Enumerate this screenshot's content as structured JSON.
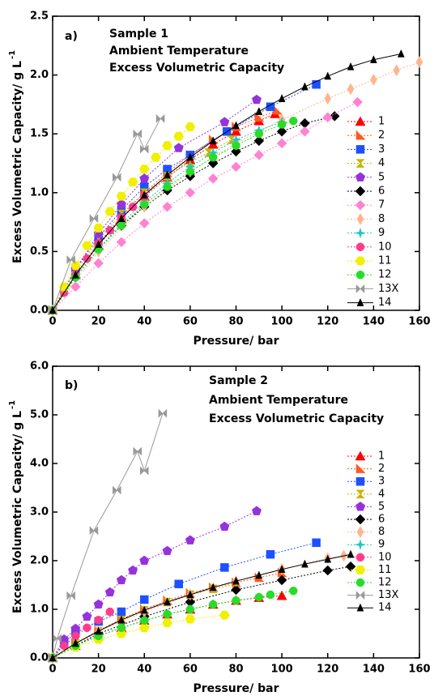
{
  "chart_data": [
    {
      "type": "line",
      "annotations": [
        "a)",
        "Sample 1",
        "Ambient Temperature",
        "Excess Volumetric Capacity"
      ],
      "xlabel": "Pressure/ bar",
      "ylabel": "Excess Volumetric Capacity/ g L",
      "ylabel_superscript": "-1",
      "xlim": [
        0,
        160
      ],
      "xticks": [
        0,
        20,
        40,
        60,
        80,
        100,
        120,
        140,
        160
      ],
      "ylim": [
        0,
        2.5
      ],
      "yticks": [
        {
          "value": 0,
          "label": "0.0"
        },
        {
          "value": 0.5,
          "label": "0.5"
        },
        {
          "value": 1,
          "label": "1.0"
        },
        {
          "value": 1.5,
          "label": "1.5"
        },
        {
          "value": 2,
          "label": "2.0"
        },
        {
          "value": 2.5,
          "label": "2.5"
        }
      ],
      "legend": "right",
      "series": [
        {
          "name": "1",
          "color": "#ff0000",
          "marker": "triangle",
          "x": [
            0,
            10,
            20,
            30,
            40,
            50,
            60,
            70,
            80,
            90,
            97
          ],
          "values": [
            0,
            0.3,
            0.55,
            0.78,
            0.97,
            1.13,
            1.28,
            1.41,
            1.52,
            1.61,
            1.67
          ]
        },
        {
          "name": "2",
          "color": "#ff5a1e",
          "marker": "right-triangle",
          "x": [
            0,
            10,
            20,
            30,
            40,
            50,
            60,
            70,
            80,
            90,
            98
          ],
          "values": [
            0,
            0.3,
            0.56,
            0.8,
            1.0,
            1.17,
            1.32,
            1.45,
            1.56,
            1.64,
            1.7
          ]
        },
        {
          "name": "3",
          "color": "#1e50ff",
          "marker": "square",
          "x": [
            0,
            10,
            20,
            30,
            40,
            50,
            60,
            76,
            95,
            115
          ],
          "values": [
            0,
            0.35,
            0.62,
            0.85,
            1.05,
            1.2,
            1.32,
            1.52,
            1.73,
            1.92
          ]
        },
        {
          "name": "4",
          "color": "#c8b400",
          "marker": "hourglass",
          "x": [
            0,
            10,
            20,
            30,
            40,
            50,
            60,
            68,
            78
          ],
          "values": [
            0,
            0.33,
            0.6,
            0.82,
            1.0,
            1.14,
            1.26,
            1.34,
            1.45
          ]
        },
        {
          "name": "5",
          "color": "#9632dc",
          "marker": "pentagon",
          "x": [
            0,
            10,
            20,
            30,
            40,
            55,
            75,
            89
          ],
          "values": [
            0,
            0.35,
            0.65,
            0.9,
            1.12,
            1.38,
            1.6,
            1.79
          ]
        },
        {
          "name": "6",
          "color": "#000000",
          "marker": "diamond",
          "x": [
            0,
            10,
            20,
            30,
            40,
            50,
            60,
            70,
            80,
            90,
            100,
            110,
            123
          ],
          "values": [
            0,
            0.28,
            0.52,
            0.72,
            0.88,
            1.02,
            1.14,
            1.25,
            1.35,
            1.44,
            1.52,
            1.59,
            1.65
          ]
        },
        {
          "name": "7",
          "color": "#ff82d2",
          "marker": "diamond",
          "x": [
            0,
            10,
            20,
            30,
            40,
            50,
            60,
            70,
            80,
            90,
            100,
            110,
            120,
            133
          ],
          "values": [
            0,
            0.2,
            0.4,
            0.58,
            0.74,
            0.88,
            1.0,
            1.12,
            1.22,
            1.32,
            1.42,
            1.52,
            1.64,
            1.77
          ]
        },
        {
          "name": "8",
          "color": "#ffb48c",
          "marker": "thin-diamond",
          "x": [
            0,
            20,
            40,
            60,
            80,
            100,
            120,
            130,
            140,
            150,
            160
          ],
          "values": [
            0,
            0.5,
            0.88,
            1.18,
            1.42,
            1.62,
            1.8,
            1.88,
            1.96,
            2.04,
            2.11
          ]
        },
        {
          "name": "9",
          "color": "#1ec8c8",
          "marker": "star",
          "x": [
            0,
            10,
            20,
            30,
            40,
            50,
            60,
            70,
            80,
            90,
            100
          ],
          "values": [
            0,
            0.28,
            0.52,
            0.74,
            0.92,
            1.08,
            1.22,
            1.34,
            1.45,
            1.53,
            1.6
          ]
        },
        {
          "name": "10",
          "color": "#ff3c8c",
          "marker": "circle",
          "x": [
            0,
            5,
            10,
            15,
            20,
            25,
            30,
            35,
            40
          ],
          "values": [
            0,
            0.15,
            0.3,
            0.44,
            0.57,
            0.68,
            0.79,
            0.88,
            0.97
          ]
        },
        {
          "name": "11",
          "color": "#f0f000",
          "marker": "hexagon",
          "x": [
            0,
            5,
            10,
            15,
            20,
            25,
            30,
            35,
            40,
            45,
            50,
            55,
            60
          ],
          "values": [
            0,
            0.2,
            0.38,
            0.55,
            0.7,
            0.84,
            0.97,
            1.09,
            1.2,
            1.3,
            1.4,
            1.48,
            1.56
          ]
        },
        {
          "name": "12",
          "color": "#28dc28",
          "marker": "circle",
          "x": [
            0,
            10,
            20,
            30,
            40,
            50,
            60,
            70,
            80,
            90,
            100,
            105
          ],
          "values": [
            0,
            0.28,
            0.52,
            0.72,
            0.9,
            1.05,
            1.18,
            1.3,
            1.4,
            1.5,
            1.58,
            1.61
          ]
        },
        {
          "name": "13X",
          "color": "#999999",
          "marker": "bowtie",
          "x": [
            0,
            8,
            18,
            28,
            37,
            40,
            47
          ],
          "values": [
            0,
            0.43,
            0.78,
            1.13,
            1.5,
            1.37,
            1.63
          ]
        },
        {
          "name": "14",
          "color": "#000000",
          "marker": "small-triangle",
          "x": [
            0,
            10,
            20,
            30,
            40,
            50,
            60,
            70,
            80,
            90,
            100,
            110,
            120,
            130,
            140,
            152
          ],
          "values": [
            0,
            0.3,
            0.56,
            0.78,
            0.98,
            1.15,
            1.3,
            1.44,
            1.57,
            1.69,
            1.8,
            1.9,
            1.99,
            2.07,
            2.13,
            2.18
          ]
        }
      ]
    },
    {
      "type": "line",
      "annotations": [
        "b)",
        "Sample 2",
        "Ambient Temperature",
        "Excess Volumetric Capacity"
      ],
      "xlabel": "Pressure/ bar",
      "ylabel": "Excess Volumetric Capacity/ g L",
      "ylabel_superscript": "-1",
      "xlim": [
        0,
        160
      ],
      "xticks": [
        0,
        20,
        40,
        60,
        80,
        100,
        120,
        140,
        160
      ],
      "ylim": [
        0,
        6
      ],
      "yticks": [
        {
          "value": 0,
          "label": "0.0"
        },
        {
          "value": 1,
          "label": "1.0"
        },
        {
          "value": 2,
          "label": "2.0"
        },
        {
          "value": 3,
          "label": "3.0"
        },
        {
          "value": 4,
          "label": "4.0"
        },
        {
          "value": 5,
          "label": "5.0"
        },
        {
          "value": 6,
          "label": "6.0"
        }
      ],
      "legend": "right",
      "series": [
        {
          "name": "1",
          "color": "#ff0000",
          "marker": "triangle",
          "x": [
            0,
            10,
            20,
            30,
            40,
            50,
            60,
            70,
            80,
            90,
            100
          ],
          "values": [
            0,
            0.25,
            0.45,
            0.62,
            0.77,
            0.9,
            1.0,
            1.1,
            1.18,
            1.24,
            1.28
          ]
        },
        {
          "name": "2",
          "color": "#ff5a1e",
          "marker": "right-triangle",
          "x": [
            0,
            10,
            20,
            30,
            40,
            50,
            60,
            70,
            80,
            90,
            100
          ],
          "values": [
            0,
            0.3,
            0.56,
            0.8,
            1.0,
            1.18,
            1.33,
            1.45,
            1.55,
            1.65,
            1.75
          ]
        },
        {
          "name": "3",
          "color": "#1e50ff",
          "marker": "square",
          "x": [
            0,
            5,
            10,
            20,
            30,
            40,
            55,
            75,
            95,
            115
          ],
          "values": [
            0,
            0.3,
            0.52,
            0.75,
            0.95,
            1.2,
            1.52,
            1.86,
            2.13,
            2.37
          ]
        },
        {
          "name": "4",
          "color": "#c8b400",
          "marker": "hourglass",
          "x": [
            0,
            10,
            20,
            30,
            40,
            50,
            60,
            70,
            80
          ],
          "values": [
            0,
            0.3,
            0.55,
            0.78,
            0.98,
            1.15,
            1.3,
            1.42,
            1.52
          ]
        },
        {
          "name": "5",
          "color": "#9632dc",
          "marker": "pentagon",
          "x": [
            0,
            5,
            10,
            15,
            20,
            25,
            30,
            35,
            40,
            50,
            60,
            75,
            89
          ],
          "values": [
            0,
            0.38,
            0.6,
            0.85,
            1.1,
            1.35,
            1.6,
            1.8,
            2.0,
            2.2,
            2.42,
            2.7,
            3.02
          ]
        },
        {
          "name": "6",
          "color": "#000000",
          "marker": "diamond",
          "x": [
            0,
            20,
            40,
            60,
            80,
            100,
            120,
            130
          ],
          "values": [
            0,
            0.5,
            0.85,
            1.15,
            1.4,
            1.6,
            1.8,
            1.88
          ]
        },
        {
          "name": "8",
          "color": "#ffb48c",
          "marker": "thin-diamond",
          "x": [
            0,
            20,
            40,
            60,
            80,
            100,
            120,
            127
          ],
          "values": [
            0,
            0.55,
            0.95,
            1.3,
            1.58,
            1.83,
            2.05,
            2.1
          ]
        },
        {
          "name": "9",
          "color": "#1ec8c8",
          "marker": "star",
          "x": [
            0,
            10,
            20,
            30,
            40,
            50,
            60
          ],
          "values": [
            0,
            0.25,
            0.45,
            0.62,
            0.77,
            0.9,
            1.0
          ]
        },
        {
          "name": "10",
          "color": "#ff3c8c",
          "marker": "circle",
          "x": [
            0,
            5,
            10,
            15,
            20,
            25
          ],
          "values": [
            0,
            0.25,
            0.45,
            0.62,
            0.78,
            0.95
          ]
        },
        {
          "name": "11",
          "color": "#f0f000",
          "marker": "hexagon",
          "x": [
            0,
            10,
            20,
            30,
            40,
            50,
            60,
            75
          ],
          "values": [
            0,
            0.22,
            0.38,
            0.5,
            0.62,
            0.72,
            0.8,
            0.88
          ]
        },
        {
          "name": "12",
          "color": "#28dc28",
          "marker": "circle",
          "x": [
            0,
            10,
            20,
            30,
            40,
            50,
            60,
            70,
            80,
            90,
            95,
            105
          ],
          "values": [
            0,
            0.25,
            0.45,
            0.62,
            0.77,
            0.9,
            1.0,
            1.1,
            1.18,
            1.25,
            1.3,
            1.38
          ]
        },
        {
          "name": "13X",
          "color": "#999999",
          "marker": "bowtie",
          "x": [
            0,
            2,
            8,
            18,
            28,
            37,
            40,
            48
          ],
          "values": [
            0,
            0.4,
            1.28,
            2.62,
            3.45,
            4.25,
            3.85,
            5.03
          ]
        },
        {
          "name": "14",
          "color": "#000000",
          "marker": "small-triangle",
          "x": [
            0,
            10,
            20,
            30,
            40,
            50,
            60,
            70,
            80,
            90,
            100,
            110,
            120,
            130
          ],
          "values": [
            0,
            0.3,
            0.55,
            0.78,
            0.98,
            1.15,
            1.3,
            1.45,
            1.58,
            1.7,
            1.82,
            1.93,
            2.03,
            2.13
          ]
        }
      ]
    }
  ]
}
